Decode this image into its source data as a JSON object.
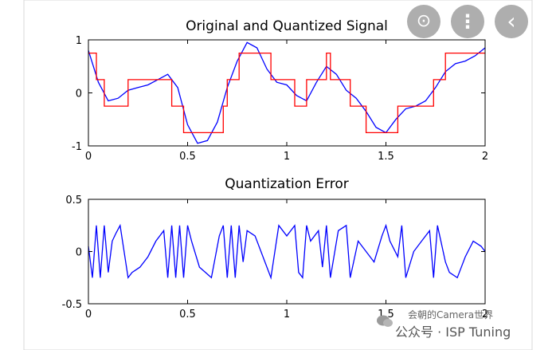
{
  "chart_data": [
    {
      "type": "line",
      "title": "Original and Quantized Signal",
      "xlim": [
        0,
        2
      ],
      "ylim": [
        -1,
        1
      ],
      "xticks": [
        "0",
        "0.5",
        "1",
        "1.5",
        "2"
      ],
      "yticks": [
        "1",
        "0",
        "-1"
      ],
      "grid": false,
      "series": [
        {
          "color": "#0000ff",
          "x": [
            0,
            0.05,
            0.1,
            0.15,
            0.2,
            0.25,
            0.3,
            0.35,
            0.4,
            0.45,
            0.5,
            0.55,
            0.6,
            0.65,
            0.7,
            0.75,
            0.8,
            0.85,
            0.9,
            0.95,
            1.0,
            1.05,
            1.1,
            1.15,
            1.2,
            1.25,
            1.3,
            1.35,
            1.4,
            1.45,
            1.5,
            1.55,
            1.6,
            1.65,
            1.7,
            1.75,
            1.8,
            1.85,
            1.9,
            1.95,
            2.0
          ],
          "y": [
            0.8,
            0.2,
            -0.15,
            -0.1,
            0.05,
            0.1,
            0.15,
            0.25,
            0.35,
            0.1,
            -0.6,
            -0.95,
            -0.9,
            -0.55,
            0.1,
            0.6,
            0.95,
            0.85,
            0.45,
            0.2,
            0.15,
            -0.05,
            -0.15,
            0.2,
            0.5,
            0.35,
            0.05,
            -0.1,
            -0.35,
            -0.65,
            -0.75,
            -0.5,
            -0.3,
            -0.25,
            -0.15,
            0.1,
            0.4,
            0.55,
            0.6,
            0.7,
            0.85
          ]
        },
        {
          "color": "#ff0000",
          "step": true,
          "x": [
            0,
            0.04,
            0.08,
            0.2,
            0.42,
            0.46,
            0.48,
            0.68,
            0.7,
            0.74,
            0.76,
            0.92,
            0.96,
            1.04,
            1.1,
            1.18,
            1.2,
            1.22,
            1.26,
            1.32,
            1.4,
            1.56,
            1.58,
            1.74,
            1.76,
            1.8,
            1.82,
            2.0
          ],
          "y": [
            0.75,
            0.25,
            -0.25,
            0.25,
            -0.25,
            -0.25,
            -0.75,
            -0.25,
            0.25,
            0.25,
            0.75,
            0.25,
            0.25,
            -0.25,
            0.25,
            0.25,
            0.75,
            0.25,
            0.25,
            -0.25,
            -0.75,
            -0.25,
            -0.25,
            0.25,
            0.25,
            0.75,
            0.75,
            0.75
          ]
        }
      ]
    },
    {
      "type": "line",
      "title": "Quantization Error",
      "xlim": [
        0,
        2
      ],
      "ylim": [
        -0.5,
        0.5
      ],
      "xticks": [
        "0",
        "0.5",
        "1",
        "1.5",
        "2"
      ],
      "yticks": [
        "0.5",
        "0",
        "-0.5"
      ],
      "grid": false,
      "series": [
        {
          "color": "#0000ff",
          "x": [
            0,
            0.02,
            0.04,
            0.06,
            0.08,
            0.1,
            0.12,
            0.14,
            0.16,
            0.2,
            0.22,
            0.26,
            0.3,
            0.34,
            0.38,
            0.4,
            0.42,
            0.44,
            0.46,
            0.48,
            0.5,
            0.52,
            0.56,
            0.62,
            0.66,
            0.68,
            0.7,
            0.72,
            0.74,
            0.76,
            0.78,
            0.8,
            0.84,
            0.9,
            0.92,
            0.96,
            1.0,
            1.04,
            1.06,
            1.08,
            1.1,
            1.12,
            1.16,
            1.18,
            1.2,
            1.22,
            1.26,
            1.3,
            1.32,
            1.36,
            1.4,
            1.44,
            1.48,
            1.5,
            1.52,
            1.56,
            1.58,
            1.6,
            1.64,
            1.68,
            1.72,
            1.74,
            1.76,
            1.8,
            1.82,
            1.86,
            1.9,
            1.94,
            1.98,
            2.0
          ],
          "y": [
            0.05,
            -0.25,
            0.25,
            -0.25,
            0.25,
            -0.2,
            0.1,
            0.18,
            0.25,
            -0.25,
            -0.2,
            -0.15,
            -0.05,
            0.1,
            0.2,
            -0.25,
            0.25,
            -0.25,
            0.25,
            -0.25,
            0.25,
            0.1,
            -0.15,
            -0.25,
            0.15,
            0.25,
            -0.25,
            0.25,
            -0.25,
            0.25,
            -0.1,
            0.2,
            0.15,
            -0.15,
            -0.25,
            0.25,
            0.15,
            0.25,
            -0.2,
            -0.25,
            0.25,
            0.1,
            0.2,
            -0.15,
            0.25,
            -0.25,
            0.2,
            0.25,
            -0.25,
            0.1,
            0.0,
            -0.1,
            0.15,
            0.25,
            0.1,
            -0.05,
            0.25,
            -0.25,
            0.0,
            0.1,
            0.2,
            -0.25,
            0.25,
            -0.1,
            -0.2,
            -0.25,
            -0.05,
            0.1,
            0.05,
            0.0
          ]
        }
      ]
    }
  ],
  "overlay": {
    "buttons": [
      {
        "icon": "lens-icon",
        "glyph": "⊙"
      },
      {
        "icon": "more-vertical-icon",
        "glyph": "⋮"
      },
      {
        "icon": "chevron-left-icon",
        "glyph": "‹"
      }
    ]
  },
  "watermark": {
    "line1": "会朝的Camera世界",
    "line2": "公众号 · ISP Tuning"
  }
}
